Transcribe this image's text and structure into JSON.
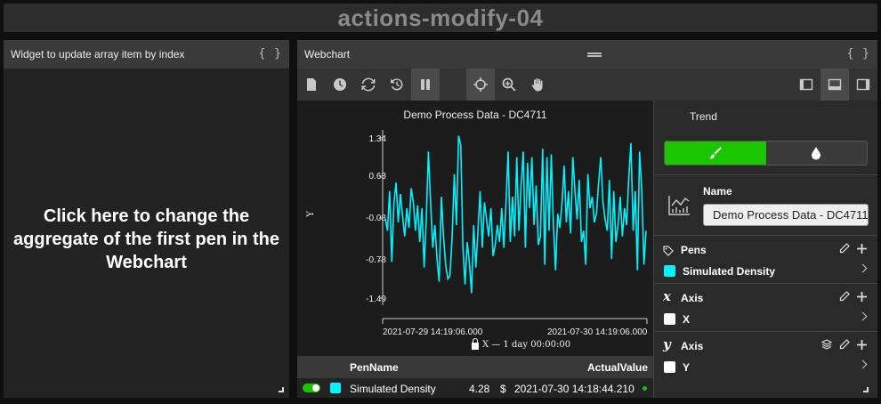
{
  "page": {
    "title": "actions-modify-04"
  },
  "left_widget": {
    "title": "Widget to update array item by index",
    "message": "Click here to change the aggregate of the first pen in the Webchart"
  },
  "webchart": {
    "title": "Webchart",
    "toolbar": [
      "file-icon",
      "clock-icon",
      "refresh-icon",
      "history-icon",
      "pause-icon",
      "crosshair-icon",
      "zoom-icon",
      "pan-hand-icon",
      "layout-left-icon",
      "layout-bottom-icon",
      "layout-right-icon"
    ],
    "range_label": "X — 1 day 00:00:00",
    "table": {
      "headers": {
        "pen_name": "PenName",
        "actual_value": "ActualValue"
      },
      "rows": [
        {
          "pen_name": "Simulated Density",
          "value": "4.28",
          "unit": "$",
          "timestamp": "2021-07-30 14:18:44.210",
          "color": "#00f2ff",
          "enabled": true
        }
      ]
    }
  },
  "side_panel": {
    "tab_title": "Trend",
    "name_label": "Name",
    "name_value": "Demo Process Data - DC4711",
    "pens": {
      "title": "Pens",
      "item": "Simulated Density",
      "color": "#00f2ff"
    },
    "x_axis": {
      "lead": "x",
      "title": "Axis",
      "item": "X"
    },
    "y_axis": {
      "lead": "y",
      "title": "Axis",
      "item": "Y"
    },
    "colors": {
      "active_swatch": "#1bc500"
    }
  },
  "chart_data": {
    "type": "line",
    "title": "Demo Process Data - DC4711",
    "xlabel": "",
    "ylabel": "Y",
    "x_ticks": [
      "2021-07-29 14:19:06.000",
      "2021-07-30 14:19:06.000"
    ],
    "y_ticks": [
      1.34,
      0.63,
      -0.08,
      -0.78,
      -1.49
    ],
    "ylim": [
      -1.6,
      1.4
    ],
    "series": [
      {
        "name": "Simulated Density",
        "color": "#00f2ff",
        "values": [
          -0.08,
          -0.3,
          0.4,
          -0.85,
          0.2,
          0.55,
          -0.15,
          0.35,
          -0.05,
          -0.4,
          0.1,
          -0.25,
          0.45,
          0.2,
          -0.3,
          0.15,
          -0.5,
          0.1,
          -0.95,
          -0.1,
          1.1,
          0.2,
          -0.6,
          -0.2,
          -0.8,
          -1.2,
          0.3,
          -0.4,
          -0.9,
          -1.15,
          -1.1,
          -0.4,
          0.7,
          -0.2,
          1.38,
          1.2,
          -0.6,
          -1.25,
          -0.5,
          -0.85,
          -1.4,
          -0.2,
          -0.95,
          -0.3,
          0.4,
          -0.6,
          0.2,
          -0.1,
          -0.4,
          0.1,
          -0.75,
          -0.55,
          -0.2,
          -0.5,
          0.1,
          -0.6,
          0.2,
          1.1,
          -0.5,
          0.3,
          -0.4,
          1.0,
          -0.3,
          0.5,
          1.1,
          -0.6,
          0.9,
          0.1,
          1.0,
          -0.2,
          0.5,
          -0.55,
          -0.4,
          1.15,
          -0.9,
          1.0,
          -0.3,
          1.05,
          -0.2,
          -1.0,
          0.0,
          -0.25,
          0.2,
          0.85,
          -0.15,
          0.4,
          -0.35,
          1.0,
          0.4,
          -0.1,
          0.6,
          -0.5,
          -0.3,
          -0.9,
          0.7,
          0.1,
          0.3,
          -0.15,
          0.0,
          0.55,
          1.0,
          0.2,
          -0.1,
          -0.3,
          0.6,
          -0.8,
          0.4,
          -0.5,
          -0.2,
          0.3,
          -0.4,
          0.1,
          -0.2,
          0.65,
          1.25,
          -0.3,
          0.4,
          -1.0,
          1.1,
          0.4,
          -0.9,
          -0.3
        ],
        "note": "approximate trace read from plot"
      }
    ],
    "grid": false,
    "legend": "none"
  }
}
